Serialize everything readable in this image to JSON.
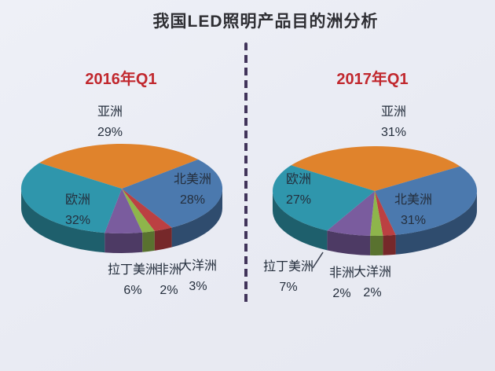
{
  "page": {
    "title": "我国LED照明产品目的洲分析",
    "background_color": "#e9ebf3",
    "divider_color": "#41345a",
    "title_color": "#2e2e33",
    "subtitle_color": "#c1282e",
    "label_color": "#242e3c"
  },
  "chart_data": [
    {
      "type": "pie",
      "style": "3d",
      "title": "2016年Q1",
      "categories": [
        "亚洲",
        "北美洲",
        "大洋洲",
        "非洲",
        "拉丁美洲",
        "欧洲"
      ],
      "values": [
        29,
        28,
        3,
        2,
        6,
        32
      ],
      "value_labels": [
        "29%",
        "28%",
        "3%",
        "2%",
        "6%",
        "32%"
      ],
      "colors": [
        "#e0832c",
        "#4b79ae",
        "#bb4042",
        "#8eb54b",
        "#7a5c9e",
        "#2f96ac"
      ],
      "start_angle_deg": -145,
      "legend": "none"
    },
    {
      "type": "pie",
      "style": "3d",
      "title": "2017年Q1",
      "categories": [
        "亚洲",
        "北美洲",
        "大洋洲",
        "非洲",
        "拉丁美洲",
        "欧洲"
      ],
      "values": [
        31,
        31,
        2,
        2,
        7,
        27
      ],
      "value_labels": [
        "31%",
        "31%",
        "2%",
        "2%",
        "7%",
        "27%"
      ],
      "colors": [
        "#e0832c",
        "#4b79ae",
        "#bb4042",
        "#8eb54b",
        "#7a5c9e",
        "#2f96ac"
      ],
      "start_angle_deg": -145,
      "legend": "none"
    }
  ]
}
